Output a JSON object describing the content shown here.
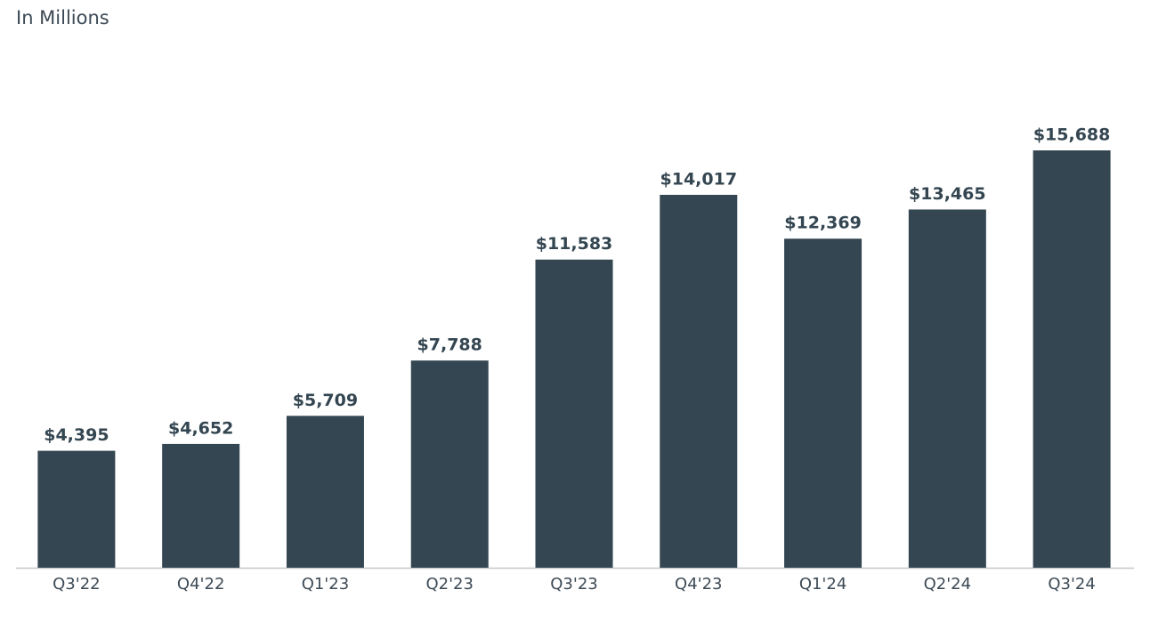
{
  "chart_data": {
    "type": "bar",
    "title": "In Millions",
    "categories": [
      "Q3'22",
      "Q4'22",
      "Q1'23",
      "Q2'23",
      "Q3'23",
      "Q4'23",
      "Q1'24",
      "Q2'24",
      "Q3'24"
    ],
    "values": [
      4395,
      4652,
      5709,
      7788,
      11583,
      14017,
      12369,
      13465,
      15688
    ],
    "value_labels": [
      "$4,395",
      "$4,652",
      "$5,709",
      "$7,788",
      "$11,583",
      "$14,017",
      "$12,369",
      "$13,465",
      "$15,688"
    ],
    "color": "#344651"
  }
}
